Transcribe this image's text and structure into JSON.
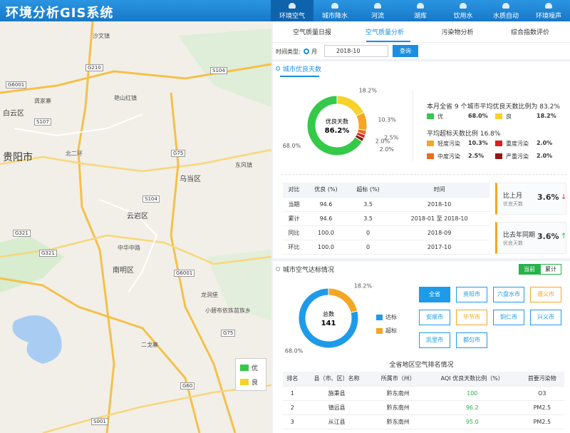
{
  "header": {
    "title": "环境分析GIS系统",
    "nav": [
      "环境空气",
      "城市降水",
      "河流",
      "湖库",
      "饮用水",
      "水质自动",
      "环境噪声"
    ]
  },
  "map": {
    "labels": [
      "沙文镇",
      "G210",
      "S104",
      "G6001",
      "白云区",
      "龚家寨",
      "S107",
      "艳山红镇",
      "北二环",
      "贵阳市",
      "G75",
      "乌当区",
      "东风镇",
      "S104",
      "云岩区",
      "G321",
      "中华中路",
      "南明区",
      "G6001",
      "二戈寨",
      "小碧布依族苗族乡",
      "G75",
      "G60",
      "S001",
      "G321",
      "龙洞堡"
    ],
    "legend": [
      "优",
      "良"
    ]
  },
  "tabs": [
    "空气质量日报",
    "空气质量分析",
    "污染物分析",
    "综合指数评价"
  ],
  "filter": {
    "label": "时间类型:",
    "mode": "月",
    "date": "2018-10",
    "button": "查询"
  },
  "excellent": {
    "title": "城市优良天数",
    "summary": "本月全省 9 个城市平均优良天数比例为 83.2%",
    "exceed": "平均超标天数比例 16.8%",
    "table": {
      "columns": [
        "对比",
        "优良 (%)",
        "超标 (%)",
        "时间"
      ],
      "rows": [
        [
          "当期",
          "94.6",
          "3.5",
          "2018-10"
        ],
        [
          "累计",
          "94.6",
          "3.5",
          "2018-01 至 2018-10"
        ],
        [
          "同比",
          "100.0",
          "0",
          "2018-09"
        ],
        [
          "环比",
          "100.0",
          "0",
          "2017-10"
        ]
      ]
    },
    "cards": [
      {
        "title": "比上月",
        "sub": "优良天数",
        "value": "3.6%"
      },
      {
        "title": "比去年同期",
        "sub": "优良天数",
        "value": "3.6%"
      }
    ]
  },
  "standard": {
    "title": "城市空气达标情况",
    "toggle": [
      "当前",
      "累计"
    ],
    "cities": [
      "全省",
      "贵阳市",
      "六盘水市",
      "遵义市",
      "安顺市",
      "毕节市",
      "铜仁市",
      "兴义市",
      "凯里市",
      "都匀市"
    ],
    "ranking": {
      "title": "全省地区空气排名情况",
      "columns": [
        "排名",
        "县（市、区）名称",
        "所属市（州）",
        "AQI 优良天数比例（%）",
        "首要污染物"
      ],
      "rows": [
        [
          "1",
          "施秉县",
          "黔东南州",
          "100",
          "O3"
        ],
        [
          "2",
          "镇远县",
          "黔东南州",
          "96.2",
          "PM2.5"
        ],
        [
          "3",
          "从江县",
          "黔东南州",
          "95.0",
          "PM2.5"
        ]
      ]
    }
  },
  "chart_data": [
    {
      "type": "pie",
      "center_label": "优良天数",
      "center_value": "86.2%",
      "categories": [
        "优",
        "良",
        "轻度污染",
        "中度污染",
        "重度污染",
        "严重污染"
      ],
      "values": [
        68.0,
        18.2,
        10.3,
        2.5,
        2.0,
        2.0
      ],
      "value_labels": [
        "68.0%",
        "18.2%",
        "10.3%",
        "2.5%",
        "2.0%",
        "2.0%"
      ],
      "colors": [
        "#35c94a",
        "#f6d22b",
        "#f5a623",
        "#f06a1e",
        "#d9201f",
        "#8b1a1a"
      ]
    },
    {
      "type": "pie",
      "center_label": "总数",
      "center_value": "141",
      "categories": [
        "达标",
        "超标"
      ],
      "values": [
        68.0,
        18.2
      ],
      "value_labels": [
        "68.0%",
        "18.2%"
      ],
      "colors": [
        "#1e9be8",
        "#f5a623"
      ]
    }
  ]
}
